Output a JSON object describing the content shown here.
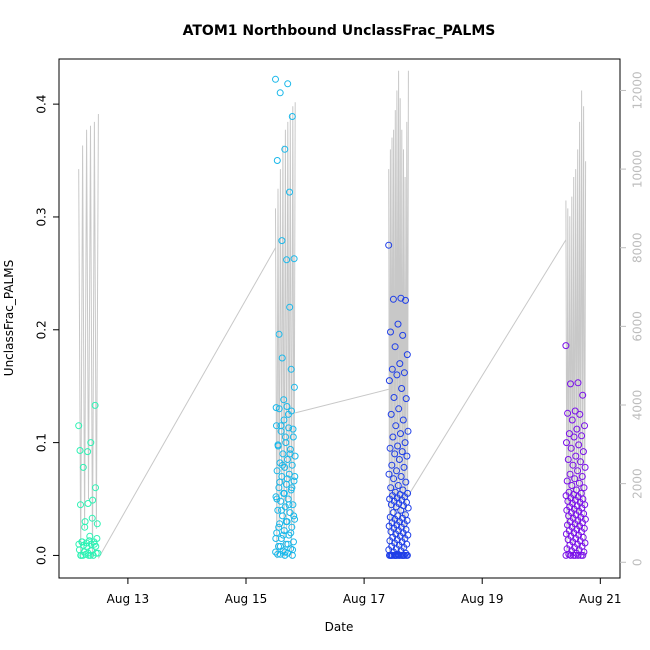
{
  "chart_data": {
    "type": "scatter",
    "title": "ATOM1 Northbound UnclassFrac_PALMS",
    "xlabel": "Date",
    "ylabel": "UnclassFrac_PALMS",
    "xlim": [
      "2016-08-11T20:00",
      "2016-08-21T08:00"
    ],
    "ylim": [
      -0.02,
      0.44
    ],
    "y2lim": [
      -400,
      12800
    ],
    "x_ticks": [
      {
        "label": "Aug 13",
        "date": "2016-08-13"
      },
      {
        "label": "Aug 15",
        "date": "2016-08-15"
      },
      {
        "label": "Aug 17",
        "date": "2016-08-17"
      },
      {
        "label": "Aug 19",
        "date": "2016-08-19"
      },
      {
        "label": "Aug 21",
        "date": "2016-08-21"
      }
    ],
    "y_ticks": [
      "0.0",
      "0.1",
      "0.2",
      "0.3",
      "0.4"
    ],
    "y2_ticks": [
      "0",
      "2000",
      "4000",
      "6000",
      "8000",
      "10000",
      "12000"
    ],
    "marker_colors": [
      "#00ffc0",
      "#00c4f0",
      "#0040ff",
      "#7a00ff"
    ],
    "secondary_line_color": "#c8c8c8",
    "series": [
      {
        "color": "#2ef2b4",
        "t_start": "2016-08-12T04:00",
        "t_end": "2016-08-12T12:00",
        "points": [
          0.115,
          0.1,
          0.078,
          0.06,
          0.046,
          0.045,
          0.049,
          0.03,
          0.028,
          0.017,
          0.012,
          0.01,
          0.008,
          0.005,
          0.004,
          0.003,
          0.002,
          0.0,
          0.0,
          0.0,
          0.001,
          0.002,
          0.0,
          0.0,
          0.133,
          0.092,
          0.093,
          0.033,
          0.025,
          0.015,
          0.013,
          0.012,
          0.012,
          0.011,
          0.01,
          0.01,
          0.009,
          0.008,
          0.002,
          0.0
        ]
      },
      {
        "color": "#1ab8ea",
        "t_start": "2016-08-15T12:00",
        "t_end": "2016-08-15T20:00",
        "points": [
          0.422,
          0.418,
          0.41,
          0.389,
          0.36,
          0.35,
          0.322,
          0.279,
          0.263,
          0.262,
          0.196,
          0.165,
          0.138,
          0.131,
          0.125,
          0.115,
          0.112,
          0.105,
          0.098,
          0.09,
          0.08,
          0.07,
          0.068,
          0.065,
          0.06,
          0.055,
          0.05,
          0.045,
          0.04,
          0.035,
          0.03,
          0.025,
          0.02,
          0.018,
          0.015,
          0.01,
          0.008,
          0.005,
          0.003,
          0.001,
          0.22,
          0.175,
          0.149,
          0.132,
          0.13,
          0.128,
          0.12,
          0.115,
          0.113,
          0.11,
          0.105,
          0.1,
          0.097,
          0.094,
          0.09,
          0.088,
          0.085,
          0.082,
          0.08,
          0.078,
          0.075,
          0.072,
          0.07,
          0.066,
          0.063,
          0.06,
          0.058,
          0.055,
          0.052,
          0.05,
          0.048,
          0.045,
          0.043,
          0.04,
          0.038,
          0.035,
          0.032,
          0.03,
          0.028,
          0.025,
          0.022,
          0.02,
          0.018,
          0.015,
          0.012,
          0.01,
          0.008,
          0.006,
          0.004,
          0.003,
          0.002,
          0.001,
          0.0,
          0.0
        ]
      },
      {
        "color": "#1f3fe8",
        "t_start": "2016-08-17T10:00",
        "t_end": "2016-08-17T18:00",
        "points": [
          0.275,
          0.228,
          0.227,
          0.226,
          0.205,
          0.198,
          0.195,
          0.185,
          0.178,
          0.17,
          0.165,
          0.162,
          0.16,
          0.155,
          0.148,
          0.14,
          0.139,
          0.13,
          0.125,
          0.12,
          0.115,
          0.11,
          0.108,
          0.105,
          0.1,
          0.097,
          0.095,
          0.092,
          0.09,
          0.088,
          0.085,
          0.08,
          0.078,
          0.075,
          0.072,
          0.07,
          0.068,
          0.065,
          0.062,
          0.06,
          0.058,
          0.056,
          0.055,
          0.054,
          0.053,
          0.052,
          0.051,
          0.05,
          0.049,
          0.048,
          0.047,
          0.046,
          0.045,
          0.044,
          0.043,
          0.042,
          0.04,
          0.038,
          0.036,
          0.035,
          0.034,
          0.033,
          0.032,
          0.031,
          0.03,
          0.029,
          0.028,
          0.027,
          0.026,
          0.025,
          0.024,
          0.023,
          0.022,
          0.021,
          0.02,
          0.019,
          0.018,
          0.017,
          0.016,
          0.015,
          0.014,
          0.013,
          0.012,
          0.011,
          0.01,
          0.009,
          0.008,
          0.007,
          0.006,
          0.005,
          0.004,
          0.003,
          0.002,
          0.001,
          0.0,
          0.0,
          0.0,
          0.0,
          0.0,
          0.0,
          0.0,
          0.0,
          0.0,
          0.0,
          0.0,
          0.0,
          0.0,
          0.0,
          0.0,
          0.0
        ]
      },
      {
        "color": "#7a10ea",
        "t_start": "2016-08-20T10:00",
        "t_end": "2016-08-20T18:00",
        "points": [
          0.186,
          0.153,
          0.152,
          0.142,
          0.128,
          0.126,
          0.125,
          0.12,
          0.115,
          0.112,
          0.108,
          0.106,
          0.105,
          0.1,
          0.098,
          0.095,
          0.092,
          0.088,
          0.085,
          0.083,
          0.08,
          0.078,
          0.075,
          0.072,
          0.07,
          0.068,
          0.066,
          0.064,
          0.062,
          0.06,
          0.058,
          0.056,
          0.055,
          0.054,
          0.053,
          0.052,
          0.051,
          0.05,
          0.049,
          0.048,
          0.047,
          0.046,
          0.045,
          0.044,
          0.043,
          0.042,
          0.041,
          0.04,
          0.039,
          0.038,
          0.037,
          0.036,
          0.035,
          0.034,
          0.033,
          0.032,
          0.031,
          0.03,
          0.029,
          0.028,
          0.027,
          0.026,
          0.025,
          0.024,
          0.023,
          0.022,
          0.021,
          0.02,
          0.019,
          0.018,
          0.017,
          0.016,
          0.015,
          0.014,
          0.013,
          0.012,
          0.011,
          0.01,
          0.009,
          0.008,
          0.007,
          0.006,
          0.005,
          0.004,
          0.003,
          0.002,
          0.001,
          0.0,
          0.0,
          0.0,
          0.0,
          0.0,
          0.0,
          0.0
        ]
      }
    ],
    "secondary_series": {
      "axis": "right",
      "segments": [
        {
          "t_start": "2016-08-12T04:00",
          "t_end": "2016-08-12T12:00",
          "peaks": [
            10000,
            10600,
            11000,
            11100,
            11200,
            11400
          ]
        },
        {
          "t_start": "2016-08-15T12:00",
          "t_end": "2016-08-15T20:00",
          "peaks": [
            9000,
            9500,
            10000,
            10600,
            11000,
            11200,
            11400,
            11600,
            11700
          ]
        },
        {
          "t_start": "2016-08-17T10:00",
          "t_end": "2016-08-17T18:00",
          "peaks": [
            10000,
            10500,
            10800,
            11000,
            11500,
            12000,
            12500,
            11800,
            11000,
            10500,
            9800,
            11200,
            12500
          ]
        },
        {
          "t_start": "2016-08-20T10:00",
          "t_end": "2016-08-20T18:00",
          "peaks": [
            9200,
            9000,
            8800,
            9300,
            9800,
            10000,
            10500,
            11200,
            12000,
            11600,
            10200
          ]
        }
      ],
      "connectors": [
        {
          "from": [
            "2016-08-12T12:00",
            100
          ],
          "to": [
            "2016-08-15T12:00",
            8000
          ]
        },
        {
          "from": [
            "2016-08-15T20:00",
            3800
          ],
          "to": [
            "2016-08-17T10:00",
            4400
          ]
        },
        {
          "from": [
            "2016-08-17T18:00",
            1700
          ],
          "to": [
            "2016-08-20T10:00",
            8200
          ]
        }
      ]
    }
  }
}
